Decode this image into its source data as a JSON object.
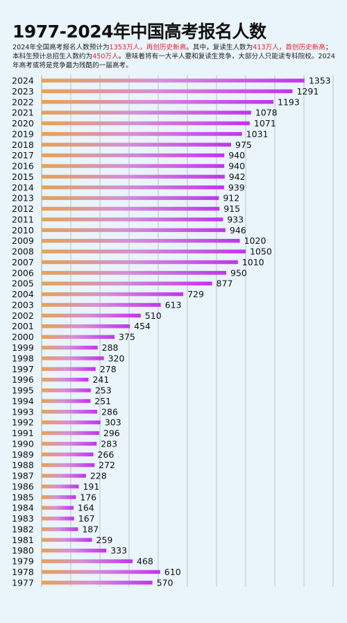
{
  "title": "1977-2024年中国高考报名人数",
  "subtitle": {
    "p1": "2024年全国高考报名人数预计为",
    "r1": "1353万人，再创历史新高",
    "p2": "。其中，复读生人数为",
    "r2": "413万人，首创历史新高",
    "p3": "；本科生预计总招生人数约为",
    "r3": "450万人",
    "p4": "。意味着将有一大半人要和复读生竞争，大部分人只能读专科院校。2024年高考或将是竞争最为残酷的一届高考。"
  },
  "colors": {
    "bar_start": "#e8a24f",
    "bar_mid": "#d68fd6",
    "bar_end": "#c433ef",
    "grid": "#9aa0a6",
    "highlight": "#e0262b"
  },
  "chart_data": {
    "type": "bar",
    "orientation": "horizontal",
    "categories": [
      "2024",
      "2023",
      "2022",
      "2021",
      "2020",
      "2019",
      "2018",
      "2017",
      "2016",
      "2015",
      "2014",
      "2013",
      "2012",
      "2011",
      "2010",
      "2009",
      "2008",
      "2007",
      "2006",
      "2005",
      "2004",
      "2003",
      "2002",
      "2001",
      "2000",
      "1999",
      "1998",
      "1997",
      "1996",
      "1995",
      "1994",
      "1993",
      "1992",
      "1991",
      "1990",
      "1989",
      "1988",
      "1987",
      "1986",
      "1985",
      "1984",
      "1983",
      "1982",
      "1981",
      "1980",
      "1979",
      "1978",
      "1977"
    ],
    "values": [
      1353,
      1291,
      1193,
      1078,
      1071,
      1031,
      975,
      940,
      940,
      942,
      939,
      912,
      915,
      933,
      946,
      1020,
      1050,
      1010,
      950,
      877,
      729,
      613,
      510,
      454,
      375,
      288,
      320,
      278,
      241,
      253,
      251,
      286,
      303,
      296,
      283,
      266,
      272,
      228,
      191,
      176,
      164,
      167,
      187,
      259,
      333,
      468,
      610,
      570
    ],
    "unit": "万人",
    "xlim": [
      0,
      1500
    ],
    "grid": true,
    "data_labels": true
  }
}
